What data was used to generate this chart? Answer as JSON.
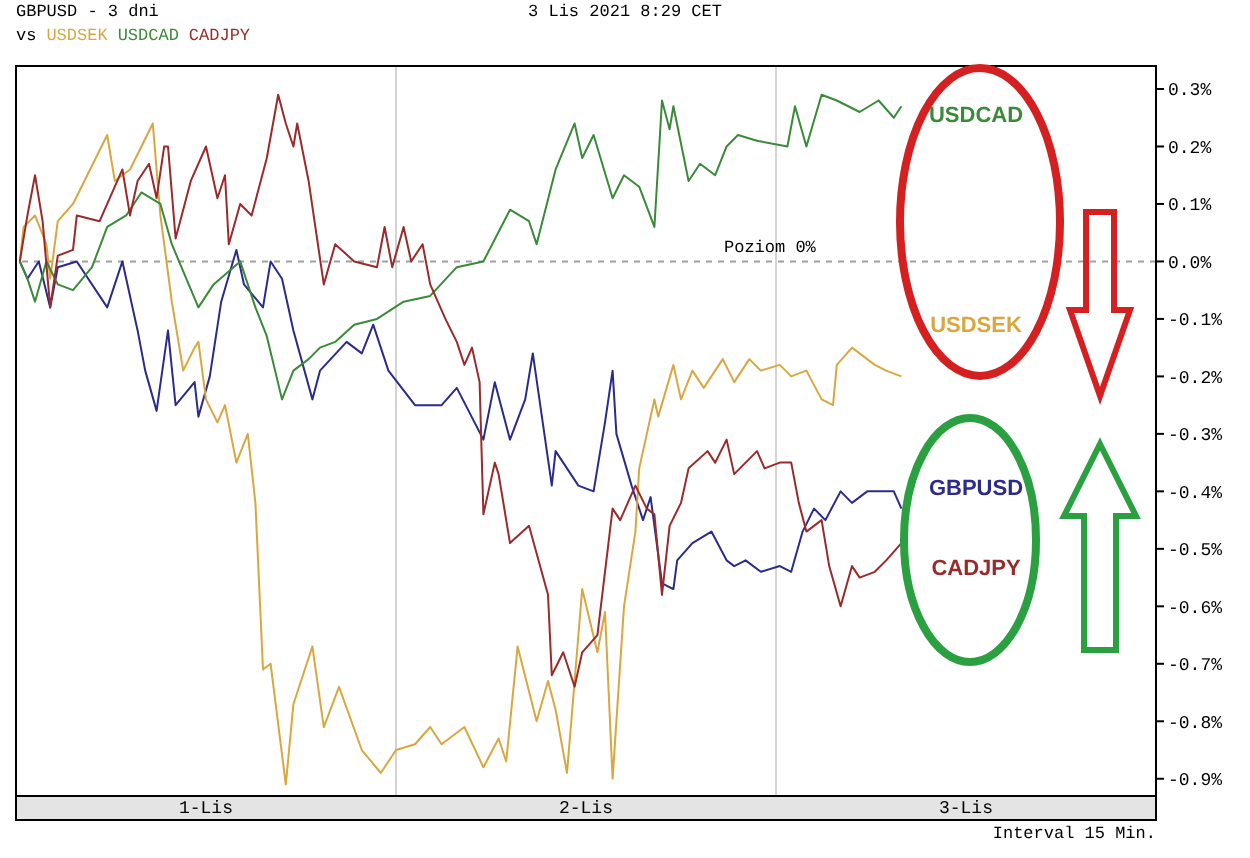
{
  "chart_data": {
    "type": "line",
    "title": "GBPUSD - 3 dni",
    "subtitle": "3 Lis 2021 8:29 CET",
    "legend_title": "vs",
    "legend": "top left",
    "grid": true,
    "xlim": [
      0,
      3
    ],
    "xticks": [
      {
        "value": 0.5,
        "label": "1-Lis"
      },
      {
        "value": 1,
        "label": null
      },
      {
        "value": 1.5,
        "label": "2-Lis"
      },
      {
        "value": 2,
        "label": null
      },
      {
        "value": 2.5,
        "label": "3-Lis"
      }
    ],
    "ylim": [
      -0.93,
      0.34
    ],
    "yticks": [
      {
        "value": 0.3,
        "label": "0.3%"
      },
      {
        "value": 0.2,
        "label": "0.2%"
      },
      {
        "value": 0.1,
        "label": "0.1%"
      },
      {
        "value": 0,
        "label": "0.0%"
      },
      {
        "value": -0.1,
        "label": "-0.1%"
      },
      {
        "value": -0.2,
        "label": "-0.2%"
      },
      {
        "value": -0.3,
        "label": "-0.3%"
      },
      {
        "value": -0.4,
        "label": "-0.4%"
      },
      {
        "value": -0.5,
        "label": "-0.5%"
      },
      {
        "value": -0.6,
        "label": "-0.6%"
      },
      {
        "value": -0.7,
        "label": "-0.7%"
      },
      {
        "value": -0.8,
        "label": "-0.8%"
      },
      {
        "value": -0.9,
        "label": "-0.9%"
      }
    ],
    "ref_lines": [
      {
        "axis": "y",
        "value": 0,
        "label": "Poziom 0%",
        "line_style": "dashed",
        "color": "#a0a0a0"
      }
    ],
    "annotations": [
      "GBPUSD",
      "USDSEK",
      "USDCAD",
      "CADJPY",
      "Interval 15 Min."
    ],
    "series": [
      {
        "color": "#2b2b8c",
        "x": [
          0.01,
          0.03,
          0.06,
          0.09,
          0.11,
          0.16,
          0.22,
          0.24,
          0.28,
          0.32,
          0.34,
          0.37,
          0.4,
          0.42,
          0.47,
          0.48,
          0.51,
          0.54,
          0.58,
          0.6,
          0.65,
          0.67,
          0.7,
          0.73,
          0.78,
          0.8,
          0.87,
          0.91,
          0.94,
          0.98,
          1.05,
          1.12,
          1.16,
          1.23,
          1.26,
          1.3,
          1.34,
          1.36,
          1.41,
          1.42,
          1.48,
          1.52,
          1.55,
          1.57,
          1.58,
          1.62,
          1.65,
          1.67,
          1.7,
          1.73,
          1.74,
          1.78,
          1.83,
          1.87,
          1.89,
          1.92,
          1.96,
          2.01,
          2.04,
          2.07,
          2.1,
          2.13,
          2.17,
          2.2,
          2.24,
          2.27,
          2.31,
          2.33
        ],
        "values": [
          0,
          -0.03,
          0,
          -0.08,
          -0.01,
          0,
          -0.06,
          -0.08,
          0,
          -0.12,
          -0.19,
          -0.26,
          -0.12,
          -0.25,
          -0.21,
          -0.27,
          -0.2,
          -0.07,
          0.02,
          -0.04,
          -0.08,
          0,
          -0.03,
          -0.12,
          -0.24,
          -0.19,
          -0.14,
          -0.16,
          -0.11,
          -0.19,
          -0.25,
          -0.25,
          -0.22,
          -0.31,
          -0.21,
          -0.31,
          -0.24,
          -0.16,
          -0.39,
          -0.33,
          -0.39,
          -0.4,
          -0.28,
          -0.19,
          -0.3,
          -0.39,
          -0.45,
          -0.41,
          -0.56,
          -0.57,
          -0.52,
          -0.49,
          -0.47,
          -0.52,
          -0.53,
          -0.52,
          -0.54,
          -0.53,
          -0.54,
          -0.47,
          -0.43,
          -0.45,
          -0.4,
          -0.42,
          -0.4,
          -0.4,
          -0.4,
          -0.43
        ]
      },
      {
        "name": "USDSEK",
        "color": "#d9a740",
        "x": [
          0.01,
          0.02,
          0.05,
          0.08,
          0.09,
          0.11,
          0.15,
          0.18,
          0.24,
          0.26,
          0.3,
          0.33,
          0.36,
          0.38,
          0.41,
          0.44,
          0.47,
          0.48,
          0.5,
          0.53,
          0.55,
          0.58,
          0.61,
          0.63,
          0.65,
          0.67,
          0.71,
          0.73,
          0.78,
          0.81,
          0.85,
          0.91,
          0.96,
          1.0,
          1.05,
          1.09,
          1.12,
          1.18,
          1.23,
          1.27,
          1.29,
          1.32,
          1.37,
          1.4,
          1.42,
          1.45,
          1.49,
          1.53,
          1.55,
          1.57,
          1.6,
          1.63,
          1.64,
          1.68,
          1.69,
          1.73,
          1.75,
          1.78,
          1.81,
          1.86,
          1.89,
          1.93,
          1.96,
          2.01,
          2.04,
          2.08,
          2.12,
          2.15,
          2.16,
          2.2,
          2.26,
          2.29,
          2.33
        ],
        "values": [
          0,
          0.06,
          0.08,
          0.03,
          -0.03,
          0.07,
          0.1,
          0.14,
          0.22,
          0.14,
          0.16,
          0.2,
          0.24,
          0.08,
          -0.07,
          -0.19,
          -0.15,
          -0.14,
          -0.24,
          -0.28,
          -0.25,
          -0.35,
          -0.3,
          -0.42,
          -0.71,
          -0.7,
          -0.91,
          -0.77,
          -0.67,
          -0.81,
          -0.74,
          -0.85,
          -0.89,
          -0.85,
          -0.84,
          -0.81,
          -0.84,
          -0.81,
          -0.88,
          -0.83,
          -0.87,
          -0.67,
          -0.8,
          -0.73,
          -0.78,
          -0.89,
          -0.57,
          -0.68,
          -0.61,
          -0.9,
          -0.6,
          -0.47,
          -0.36,
          -0.24,
          -0.27,
          -0.18,
          -0.24,
          -0.19,
          -0.22,
          -0.17,
          -0.21,
          -0.17,
          -0.19,
          -0.18,
          -0.2,
          -0.19,
          -0.24,
          -0.25,
          -0.18,
          -0.15,
          -0.18,
          -0.19,
          -0.2
        ]
      },
      {
        "name": "USDCAD",
        "color": "#3a8a3a",
        "x": [
          0.01,
          0.03,
          0.05,
          0.08,
          0.11,
          0.15,
          0.2,
          0.24,
          0.29,
          0.33,
          0.38,
          0.41,
          0.48,
          0.52,
          0.59,
          0.63,
          0.66,
          0.7,
          0.73,
          0.77,
          0.8,
          0.84,
          0.89,
          0.95,
          1.02,
          1.09,
          1.16,
          1.23,
          1.3,
          1.35,
          1.37,
          1.42,
          1.47,
          1.49,
          1.52,
          1.57,
          1.6,
          1.64,
          1.68,
          1.7,
          1.72,
          1.73,
          1.77,
          1.8,
          1.84,
          1.87,
          1.9,
          1.95,
          2.03,
          2.05,
          2.08,
          2.12,
          2.16,
          2.22,
          2.27,
          2.31,
          2.33
        ],
        "values": [
          0,
          -0.03,
          -0.07,
          0,
          -0.04,
          -0.05,
          -0.01,
          0.06,
          0.08,
          0.12,
          0.1,
          0.03,
          -0.08,
          -0.04,
          0,
          -0.08,
          -0.13,
          -0.24,
          -0.19,
          -0.17,
          -0.15,
          -0.14,
          -0.11,
          -0.1,
          -0.07,
          -0.06,
          -0.01,
          0,
          0.09,
          0.07,
          0.03,
          0.16,
          0.24,
          0.18,
          0.22,
          0.11,
          0.15,
          0.13,
          0.06,
          0.28,
          0.23,
          0.27,
          0.14,
          0.17,
          0.15,
          0.2,
          0.22,
          0.21,
          0.2,
          0.27,
          0.2,
          0.29,
          0.28,
          0.26,
          0.28,
          0.25,
          0.27
        ]
      },
      {
        "name": "CADJPY",
        "color": "#9b2a2a",
        "x": [
          0.01,
          0.03,
          0.05,
          0.07,
          0.09,
          0.11,
          0.15,
          0.16,
          0.22,
          0.26,
          0.28,
          0.3,
          0.32,
          0.35,
          0.37,
          0.39,
          0.4,
          0.42,
          0.46,
          0.5,
          0.53,
          0.55,
          0.56,
          0.59,
          0.62,
          0.66,
          0.69,
          0.71,
          0.73,
          0.74,
          0.77,
          0.81,
          0.84,
          0.89,
          0.95,
          0.97,
          0.99,
          1.02,
          1.04,
          1.07,
          1.09,
          1.13,
          1.16,
          1.18,
          1.2,
          1.22,
          1.23,
          1.26,
          1.27,
          1.3,
          1.35,
          1.4,
          1.41,
          1.44,
          1.47,
          1.49,
          1.53,
          1.57,
          1.59,
          1.63,
          1.66,
          1.68,
          1.7,
          1.72,
          1.75,
          1.77,
          1.82,
          1.84,
          1.87,
          1.89,
          1.95,
          1.97,
          2.01,
          2.04,
          2.06,
          2.08,
          2.12,
          2.14,
          2.17,
          2.2,
          2.22,
          2.26,
          2.29,
          2.33
        ],
        "values": [
          0,
          0.08,
          0.15,
          0.07,
          -0.08,
          0.01,
          0.02,
          0.08,
          0.07,
          0.13,
          0.16,
          0.08,
          0.14,
          0.17,
          0.11,
          0.2,
          0.2,
          0.04,
          0.14,
          0.2,
          0.11,
          0.15,
          0.03,
          0.1,
          0.08,
          0.18,
          0.29,
          0.24,
          0.2,
          0.24,
          0.14,
          -0.04,
          0.03,
          0,
          -0.01,
          0.06,
          -0.01,
          0.06,
          0,
          0.03,
          -0.04,
          -0.1,
          -0.14,
          -0.18,
          -0.15,
          -0.21,
          -0.44,
          -0.35,
          -0.37,
          -0.49,
          -0.46,
          -0.58,
          -0.72,
          -0.68,
          -0.74,
          -0.68,
          -0.65,
          -0.43,
          -0.45,
          -0.39,
          -0.43,
          -0.44,
          -0.58,
          -0.46,
          -0.42,
          -0.36,
          -0.33,
          -0.35,
          -0.31,
          -0.37,
          -0.33,
          -0.36,
          -0.35,
          -0.35,
          -0.42,
          -0.47,
          -0.45,
          -0.53,
          -0.6,
          -0.53,
          -0.55,
          -0.54,
          -0.52,
          -0.49
        ]
      }
    ]
  }
}
